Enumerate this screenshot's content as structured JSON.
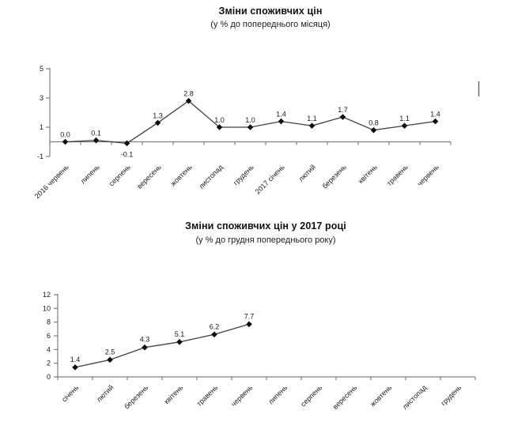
{
  "chart_data": [
    {
      "type": "line",
      "title": "Зміни споживчих цін",
      "subtitle": "(у % до попереднього місяця)",
      "categories": [
        "2016 червень",
        "липень",
        "серпень",
        "вересень",
        "жовтень",
        "листопад",
        "грудень",
        "2017 січень",
        "лютий",
        "березень",
        "квітень",
        "травень",
        "червень"
      ],
      "values": [
        0.0,
        0.1,
        -0.1,
        1.3,
        2.8,
        1.0,
        1.0,
        1.4,
        1.1,
        1.7,
        0.8,
        1.1,
        1.4
      ],
      "point_labels": [
        "0.0",
        "0.1",
        "-0.1",
        "1.3",
        "2.8",
        "1.0",
        "1.0",
        "1.4",
        "1.1",
        "1.7",
        "0.8",
        "1.1",
        "1.4"
      ],
      "xlabel": "",
      "ylabel": "",
      "ylim": [
        -1,
        5
      ],
      "yticks": [
        -1,
        1,
        3,
        5
      ],
      "grid": false,
      "legend": "none",
      "line_color": "#3f3f3f",
      "marker_color": "#0d0d0d",
      "axis_color": "#7f7f7f",
      "text_color": "#1a1a1a"
    },
    {
      "type": "line",
      "title": "Зміни споживчих цін у 2017 році",
      "subtitle": "(у % до грудня попереднього року)",
      "categories": [
        "січень",
        "лютий",
        "березень",
        "квітень",
        "травень",
        "червень",
        "липень",
        "серпень",
        "вересень",
        "жовтень",
        "листопад",
        "грудень"
      ],
      "values": [
        1.4,
        2.5,
        4.3,
        5.1,
        6.2,
        7.7,
        null,
        null,
        null,
        null,
        null,
        null
      ],
      "point_labels": [
        "1.4",
        "2.5",
        "4.3",
        "5.1",
        "6.2",
        "7.7",
        null,
        null,
        null,
        null,
        null,
        null
      ],
      "xlabel": "",
      "ylabel": "",
      "ylim": [
        0,
        12
      ],
      "yticks": [
        0,
        2,
        4,
        6,
        8,
        10,
        12
      ],
      "grid": false,
      "legend": "none",
      "line_color": "#3f3f3f",
      "marker_color": "#0d0d0d",
      "axis_color": "#7f7f7f",
      "text_color": "#1a1a1a"
    }
  ]
}
